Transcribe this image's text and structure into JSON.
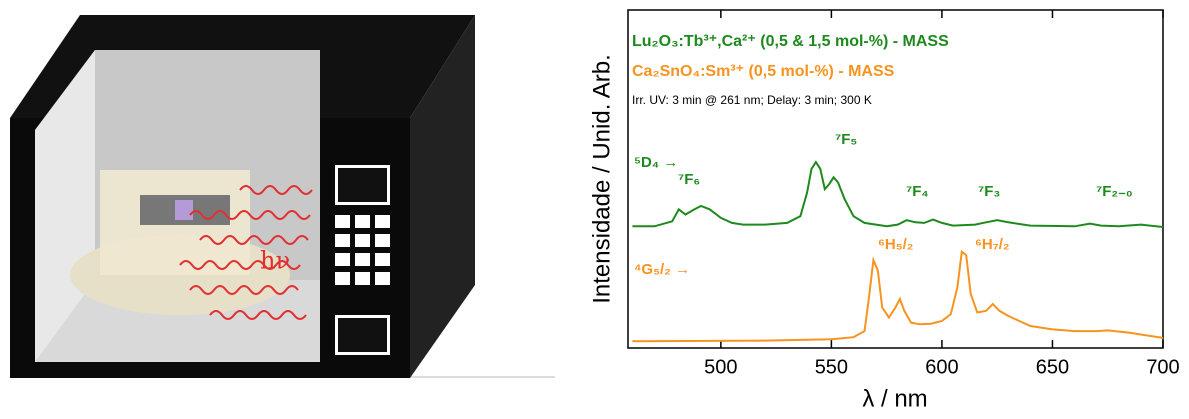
{
  "illustration_label": "hν",
  "chart_data": {
    "type": "line",
    "xlabel": "λ / nm",
    "ylabel": "Intensidade / Unid. Arb.",
    "subtitle": "Irr. UV: 3 min @ 261 nm; Delay: 3 min; 300 K",
    "xlim": [
      458,
      700
    ],
    "xticks": [
      500,
      550,
      600,
      650,
      700
    ],
    "ylim": [
      0,
      10
    ],
    "annotations": [
      "⁵D₄ →",
      "⁷F₆",
      "⁷F₅",
      "⁷F₄",
      "⁷F₃",
      "⁷F₂₋₀",
      "⁴G₅/₂ →",
      "⁶H₅/₂",
      "⁶H₇/₂"
    ],
    "series": [
      {
        "name": "Lu₂O₃:Tb³⁺,Ca²⁺ (0,5 & 1,5 mol-%) - MASS",
        "color": "#1e8a1e",
        "x": [
          460,
          470,
          478,
          481,
          484,
          488,
          491,
          495,
          500,
          505,
          510,
          520,
          530,
          536,
          539,
          541,
          543,
          545,
          547,
          549,
          551,
          553,
          556,
          560,
          565,
          575,
          580,
          584,
          588,
          592,
          596,
          600,
          605,
          615,
          620,
          625,
          630,
          640,
          660,
          667,
          672,
          680,
          690,
          700
        ],
        "values": [
          3.6,
          3.6,
          3.75,
          4.1,
          3.95,
          4.1,
          4.2,
          4.1,
          3.85,
          3.7,
          3.65,
          3.65,
          3.7,
          3.9,
          4.6,
          5.3,
          5.5,
          5.3,
          4.7,
          4.85,
          5.05,
          4.9,
          4.4,
          3.9,
          3.7,
          3.6,
          3.65,
          3.78,
          3.72,
          3.7,
          3.8,
          3.7,
          3.62,
          3.65,
          3.72,
          3.78,
          3.72,
          3.62,
          3.6,
          3.68,
          3.62,
          3.6,
          3.65,
          3.58
        ]
      },
      {
        "name": "Ca₂SnO₄:Sm³⁺ (0,5 mol-%) - MASS",
        "color": "#f7931e",
        "x": [
          460,
          520,
          550,
          560,
          565,
          567,
          569,
          571,
          573,
          576,
          579,
          581,
          583,
          586,
          590,
          595,
          600,
          604,
          607,
          609,
          611,
          613,
          616,
          620,
          623,
          626,
          630,
          635,
          640,
          650,
          660,
          670,
          675,
          685,
          700
        ],
        "values": [
          0.2,
          0.22,
          0.26,
          0.32,
          0.5,
          1.5,
          2.6,
          2.3,
          1.2,
          0.9,
          1.2,
          1.45,
          1.1,
          0.75,
          0.7,
          0.72,
          0.8,
          1.0,
          1.8,
          2.85,
          2.75,
          1.6,
          1.05,
          1.1,
          1.3,
          1.1,
          0.95,
          0.8,
          0.65,
          0.55,
          0.5,
          0.5,
          0.52,
          0.45,
          0.3
        ]
      }
    ]
  }
}
